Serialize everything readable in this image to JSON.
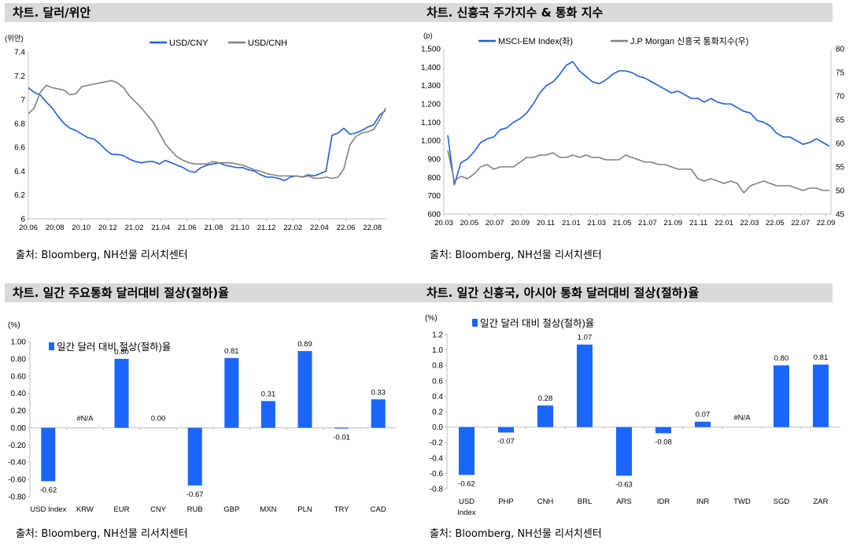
{
  "panels": {
    "p1": {
      "title": "차트. 달러/위안",
      "source": "출처: Bloomberg, NH선물 리서치센터"
    },
    "p2": {
      "title": "차트. 신흥국 주가지수 & 통화 지수",
      "source": "출처: Bloomberg, NH선물 리서치센터"
    },
    "p3": {
      "title": "차트. 일간 주요통화 달러대비 절상(절하)율",
      "source": "출처: Bloomberg, NH선물 리서치센터"
    },
    "p4": {
      "title": "차트. 일간 신흥국, 아시아 통화 달러대비 절상(절하)율",
      "source": "출처: Bloomberg, NH선물 리서치센터"
    }
  },
  "chart_data": [
    {
      "id": "p1",
      "type": "line",
      "unit_label": "(위안)",
      "ylim": [
        6,
        7.4
      ],
      "yticks": [
        6,
        6.2,
        6.4,
        6.6,
        6.8,
        7,
        7.2,
        7.4
      ],
      "xticks": [
        "20.06",
        "20.08",
        "20.10",
        "20.12",
        "21.02",
        "21.04",
        "21.06",
        "21.08",
        "21.10",
        "21.12",
        "22.02",
        "22.04",
        "22.06",
        "22.08"
      ],
      "legend_position": "top",
      "series": [
        {
          "name": "USD/CNY",
          "color": "#1f5fd9",
          "values": [
            7.1,
            7.06,
            7.04,
            6.98,
            6.93,
            6.86,
            6.8,
            6.76,
            6.74,
            6.71,
            6.68,
            6.67,
            6.63,
            6.58,
            6.54,
            6.54,
            6.53,
            6.5,
            6.48,
            6.47,
            6.48,
            6.48,
            6.46,
            6.49,
            6.47,
            6.45,
            6.43,
            6.4,
            6.39,
            6.43,
            6.45,
            6.46,
            6.47,
            6.45,
            6.44,
            6.43,
            6.43,
            6.41,
            6.4,
            6.37,
            6.35,
            6.35,
            6.34,
            6.32,
            6.35,
            6.36,
            6.35,
            6.37,
            6.36,
            6.38,
            6.4,
            6.7,
            6.72,
            6.76,
            6.71,
            6.72,
            6.74,
            6.77,
            6.79,
            6.87,
            6.91
          ]
        },
        {
          "name": "USD/CNH",
          "color": "#808080",
          "values": [
            6.88,
            6.93,
            7.06,
            7.12,
            7.1,
            7.09,
            7.08,
            7.04,
            7.05,
            7.11,
            7.12,
            7.13,
            7.14,
            7.15,
            7.16,
            7.14,
            7.1,
            7.03,
            6.98,
            6.93,
            6.87,
            6.81,
            6.72,
            6.63,
            6.57,
            6.52,
            6.49,
            6.47,
            6.46,
            6.46,
            6.46,
            6.48,
            6.47,
            6.47,
            6.47,
            6.46,
            6.45,
            6.43,
            6.41,
            6.4,
            6.38,
            6.37,
            6.36,
            6.36,
            6.36,
            6.36,
            6.35,
            6.36,
            6.34,
            6.34,
            6.35,
            6.34,
            6.35,
            6.42,
            6.62,
            6.69,
            6.72,
            6.73,
            6.75,
            6.83,
            6.93
          ]
        }
      ]
    },
    {
      "id": "p2",
      "type": "line",
      "unit_label": "(p)",
      "ylim": [
        600,
        1500
      ],
      "yticks": [
        600,
        700,
        800,
        900,
        1000,
        1100,
        1200,
        1300,
        1400,
        1500
      ],
      "y2lim": [
        45,
        80
      ],
      "y2ticks": [
        45,
        50,
        55,
        60,
        65,
        70,
        75,
        80
      ],
      "xticks": [
        "20.03",
        "20.05",
        "20.07",
        "20.09",
        "20.11",
        "21.01",
        "21.03",
        "21.05",
        "21.07",
        "21.09",
        "21.11",
        "22.01",
        "22.03",
        "22.05",
        "22.07",
        "22.09"
      ],
      "legend_position": "top",
      "series": [
        {
          "name": "MSCI-EM Index(좌)",
          "color": "#1f5fd9",
          "axis": "left",
          "values": [
            1030,
            760,
            880,
            900,
            940,
            990,
            1010,
            1020,
            1060,
            1070,
            1100,
            1120,
            1150,
            1200,
            1260,
            1300,
            1320,
            1360,
            1410,
            1430,
            1380,
            1350,
            1320,
            1310,
            1330,
            1360,
            1380,
            1380,
            1370,
            1350,
            1340,
            1320,
            1300,
            1280,
            1260,
            1270,
            1250,
            1230,
            1230,
            1210,
            1230,
            1210,
            1200,
            1200,
            1180,
            1160,
            1150,
            1110,
            1100,
            1080,
            1040,
            1020,
            1020,
            1000,
            980,
            990,
            1010,
            990,
            970
          ]
        },
        {
          "name": "J.P Morgan 신흥국 통화지수(우)",
          "color": "#808080",
          "axis": "right",
          "values": [
            58.5,
            52,
            53,
            52.5,
            53.5,
            55,
            55.5,
            54.5,
            55,
            55,
            55,
            56,
            57,
            57,
            57.5,
            57.5,
            58,
            57,
            57,
            57.5,
            57,
            57.5,
            57,
            57,
            56.5,
            56.5,
            56.5,
            57.5,
            57,
            56.5,
            56,
            56,
            55.5,
            55.5,
            55,
            54.5,
            54.5,
            54.5,
            52.5,
            52,
            52.5,
            52,
            51.5,
            52,
            51.5,
            49.5,
            51,
            51.5,
            52,
            51.5,
            51,
            51,
            51,
            50.5,
            50,
            50.5,
            50.5,
            50,
            50
          ]
        }
      ]
    },
    {
      "id": "p3",
      "type": "bar",
      "unit_label": "(%)",
      "legend": "일간 달러 대비 절상(절하)율",
      "ylim": [
        -0.8,
        1.0
      ],
      "yticks": [
        "1.00",
        "0.80",
        "0.60",
        "0.40",
        "0.20",
        "0.00",
        "-0.20",
        "-0.40",
        "-0.60",
        "-0.80"
      ],
      "categories": [
        "USD Index",
        "KRW",
        "EUR",
        "CNY",
        "RUB",
        "GBP",
        "MXN",
        "PLN",
        "TRY",
        "CAD"
      ],
      "values": [
        -0.62,
        null,
        0.8,
        0.0,
        -0.67,
        0.81,
        0.31,
        0.89,
        -0.01,
        0.33
      ],
      "labels": [
        "-0.62",
        "#N/A",
        "0.80",
        "0.00",
        "-0.67",
        "0.81",
        "0.31",
        "0.89",
        "-0.01",
        "0.33"
      ],
      "color": "#1a66ff"
    },
    {
      "id": "p4",
      "type": "bar",
      "unit_label": "(%)",
      "legend": "일간 달러 대비 절상(절하)율",
      "ylim": [
        -0.8,
        1.2
      ],
      "yticks": [
        "1.2",
        "1.0",
        "0.8",
        "0.6",
        "0.4",
        "0.2",
        "0.0",
        "-0.2",
        "-0.4",
        "-0.6",
        "-0.8"
      ],
      "categories": [
        "USD Index",
        "PHP",
        "CNH",
        "BRL",
        "ARS",
        "IDR",
        "INR",
        "TWD",
        "SGD",
        "ZAR"
      ],
      "values": [
        -0.62,
        -0.07,
        0.28,
        1.07,
        -0.63,
        -0.08,
        0.07,
        null,
        0.8,
        0.81
      ],
      "labels": [
        "-0.62",
        "-0.07",
        "0.28",
        "1.07",
        "-0.63",
        "-0.08",
        "0.07",
        "#N/A",
        "0.80",
        "0.81"
      ],
      "color": "#1a66ff"
    }
  ]
}
